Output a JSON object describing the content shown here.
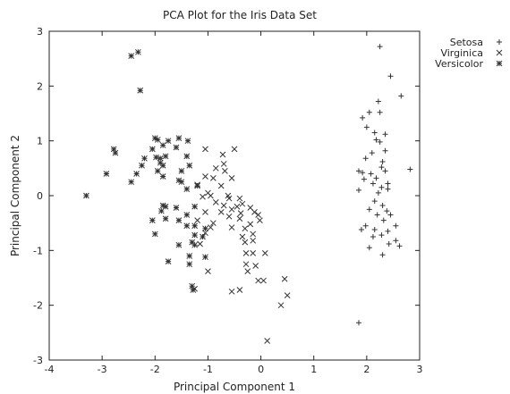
{
  "chart_data": {
    "type": "scatter",
    "title": "PCA Plot for the Iris Data Set",
    "xlabel": "Principal Component 1",
    "ylabel": "Principal Component 2",
    "xlim": [
      -4,
      3
    ],
    "ylim": [
      -3,
      3
    ],
    "xticks": [
      -4,
      -3,
      -2,
      -1,
      0,
      1,
      2,
      3
    ],
    "yticks": [
      -3,
      -2,
      -1,
      0,
      1,
      2,
      3
    ],
    "grid": false,
    "legend_position": "outside-top-right",
    "series": [
      {
        "name": "Setosa",
        "marker": "plus",
        "points": [
          [
            2.25,
            2.72
          ],
          [
            2.45,
            2.18
          ],
          [
            2.65,
            1.82
          ],
          [
            2.22,
            1.72
          ],
          [
            1.92,
            1.42
          ],
          [
            2.05,
            1.52
          ],
          [
            2.25,
            1.52
          ],
          [
            2.0,
            1.25
          ],
          [
            2.15,
            1.15
          ],
          [
            2.35,
            1.12
          ],
          [
            2.18,
            1.02
          ],
          [
            2.25,
            0.98
          ],
          [
            2.35,
            0.82
          ],
          [
            2.1,
            0.78
          ],
          [
            1.98,
            0.68
          ],
          [
            2.3,
            0.62
          ],
          [
            2.28,
            0.52
          ],
          [
            2.82,
            0.48
          ],
          [
            1.85,
            0.45
          ],
          [
            1.92,
            0.42
          ],
          [
            2.08,
            0.4
          ],
          [
            2.35,
            0.45
          ],
          [
            2.18,
            0.32
          ],
          [
            1.95,
            0.3
          ],
          [
            2.4,
            0.22
          ],
          [
            2.12,
            0.22
          ],
          [
            2.28,
            0.15
          ],
          [
            1.85,
            0.1
          ],
          [
            2.4,
            0.12
          ],
          [
            2.22,
            0.05
          ],
          [
            2.15,
            -0.1
          ],
          [
            2.3,
            -0.18
          ],
          [
            2.05,
            -0.25
          ],
          [
            2.38,
            -0.28
          ],
          [
            2.45,
            -0.35
          ],
          [
            2.2,
            -0.35
          ],
          [
            2.32,
            -0.45
          ],
          [
            1.98,
            -0.55
          ],
          [
            2.55,
            -0.55
          ],
          [
            1.9,
            -0.62
          ],
          [
            2.15,
            -0.62
          ],
          [
            2.4,
            -0.65
          ],
          [
            2.28,
            -0.72
          ],
          [
            2.12,
            -0.75
          ],
          [
            2.55,
            -0.82
          ],
          [
            2.42,
            -0.88
          ],
          [
            2.62,
            -0.92
          ],
          [
            2.05,
            -0.95
          ],
          [
            2.3,
            -1.08
          ],
          [
            1.85,
            -2.32
          ]
        ]
      },
      {
        "name": "Virginica",
        "marker": "x",
        "points": [
          [
            -1.05,
            0.85
          ],
          [
            -0.5,
            0.85
          ],
          [
            -0.72,
            0.75
          ],
          [
            -0.7,
            0.58
          ],
          [
            -0.68,
            0.45
          ],
          [
            -0.85,
            0.5
          ],
          [
            -1.05,
            0.35
          ],
          [
            -0.9,
            0.32
          ],
          [
            -0.55,
            0.32
          ],
          [
            -1.2,
            0.2
          ],
          [
            -0.75,
            0.18
          ],
          [
            -1.0,
            0.05
          ],
          [
            -0.95,
            0.0
          ],
          [
            -0.62,
            0.0
          ],
          [
            -1.1,
            -0.02
          ],
          [
            -0.6,
            -0.05
          ],
          [
            -0.4,
            -0.05
          ],
          [
            -0.85,
            -0.12
          ],
          [
            -0.35,
            -0.15
          ],
          [
            -0.7,
            -0.18
          ],
          [
            -0.45,
            -0.2
          ],
          [
            -0.55,
            -0.25
          ],
          [
            -0.2,
            -0.22
          ],
          [
            -1.05,
            -0.3
          ],
          [
            -0.75,
            -0.3
          ],
          [
            -0.38,
            -0.32
          ],
          [
            -0.12,
            -0.3
          ],
          [
            -0.6,
            -0.38
          ],
          [
            -0.05,
            -0.35
          ],
          [
            -0.4,
            -0.42
          ],
          [
            -0.02,
            -0.45
          ],
          [
            -0.9,
            -0.5
          ],
          [
            -1.2,
            -0.45
          ],
          [
            -0.2,
            -0.52
          ],
          [
            -0.95,
            -0.58
          ],
          [
            -0.55,
            -0.58
          ],
          [
            -0.3,
            -0.6
          ],
          [
            -1.05,
            -0.68
          ],
          [
            -0.35,
            -0.75
          ],
          [
            -0.15,
            -0.7
          ],
          [
            -0.3,
            -0.85
          ],
          [
            -0.15,
            -0.82
          ],
          [
            -1.15,
            -0.88
          ],
          [
            -0.28,
            -1.05
          ],
          [
            -0.15,
            -1.05
          ],
          [
            -0.1,
            -1.28
          ],
          [
            0.08,
            -1.05
          ],
          [
            -0.28,
            -1.25
          ],
          [
            -1.0,
            -1.38
          ],
          [
            -0.25,
            -1.38
          ],
          [
            -0.05,
            -1.55
          ],
          [
            0.05,
            -1.55
          ],
          [
            0.45,
            -1.52
          ],
          [
            -0.4,
            -1.72
          ],
          [
            -0.55,
            -1.75
          ],
          [
            0.5,
            -1.82
          ],
          [
            -1.25,
            -1.7
          ],
          [
            0.38,
            -2.0
          ],
          [
            0.12,
            -2.65
          ]
        ]
      },
      {
        "name": "Versicolor",
        "marker": "asterisk",
        "points": [
          [
            -2.32,
            2.62
          ],
          [
            -2.45,
            2.55
          ],
          [
            -2.28,
            1.92
          ],
          [
            -2.0,
            1.05
          ],
          [
            -1.95,
            1.02
          ],
          [
            -1.55,
            1.05
          ],
          [
            -1.38,
            1.0
          ],
          [
            -1.75,
            1.0
          ],
          [
            -1.85,
            0.92
          ],
          [
            -1.6,
            0.88
          ],
          [
            -2.05,
            0.85
          ],
          [
            -2.78,
            0.85
          ],
          [
            -2.75,
            0.78
          ],
          [
            -1.98,
            0.7
          ],
          [
            -1.9,
            0.68
          ],
          [
            -1.8,
            0.72
          ],
          [
            -2.2,
            0.68
          ],
          [
            -1.4,
            0.72
          ],
          [
            -1.9,
            0.6
          ],
          [
            -1.85,
            0.55
          ],
          [
            -2.25,
            0.55
          ],
          [
            -1.35,
            0.55
          ],
          [
            -1.5,
            0.45
          ],
          [
            -1.95,
            0.45
          ],
          [
            -2.35,
            0.4
          ],
          [
            -1.85,
            0.35
          ],
          [
            -2.92,
            0.4
          ],
          [
            -1.55,
            0.28
          ],
          [
            -1.5,
            0.25
          ],
          [
            -2.45,
            0.25
          ],
          [
            -1.2,
            0.18
          ],
          [
            -1.4,
            0.12
          ],
          [
            -3.3,
            0.0
          ],
          [
            -1.85,
            -0.18
          ],
          [
            -1.8,
            -0.2
          ],
          [
            -1.6,
            -0.22
          ],
          [
            -1.25,
            -0.2
          ],
          [
            -1.88,
            -0.28
          ],
          [
            -1.4,
            -0.35
          ],
          [
            -1.55,
            -0.45
          ],
          [
            -1.8,
            -0.42
          ],
          [
            -2.05,
            -0.45
          ],
          [
            -1.4,
            -0.55
          ],
          [
            -1.25,
            -0.55
          ],
          [
            -1.05,
            -0.6
          ],
          [
            -2.0,
            -0.7
          ],
          [
            -1.25,
            -0.72
          ],
          [
            -1.1,
            -0.75
          ],
          [
            -1.3,
            -0.85
          ],
          [
            -1.55,
            -0.9
          ],
          [
            -1.25,
            -0.9
          ],
          [
            -1.35,
            -1.1
          ],
          [
            -1.05,
            -1.12
          ],
          [
            -1.35,
            -1.25
          ],
          [
            -1.75,
            -1.2
          ],
          [
            -1.3,
            -1.65
          ],
          [
            -1.28,
            -1.72
          ]
        ]
      }
    ]
  }
}
